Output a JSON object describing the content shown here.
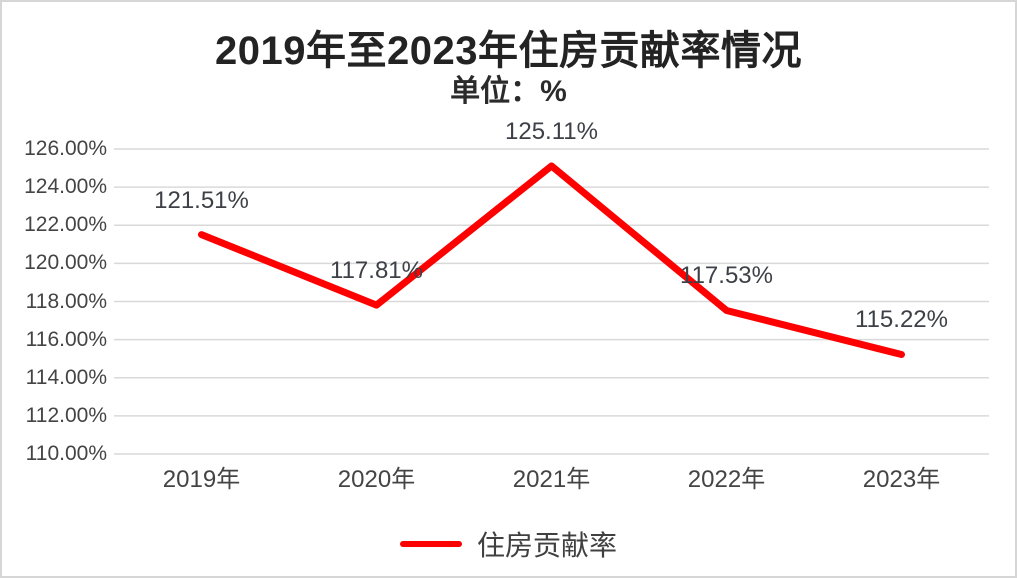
{
  "frame": {
    "background": "#ffffff",
    "border_color": "#d6d6d6"
  },
  "chart_data": {
    "type": "line",
    "title": "2019年至2023年住房贡献率情况",
    "subtitle": "单位：%",
    "categories": [
      "2019年",
      "2020年",
      "2021年",
      "2022年",
      "2023年"
    ],
    "series": [
      {
        "name": "住房贡献率",
        "color": "#fe0000",
        "values": [
          121.51,
          117.81,
          125.11,
          117.53,
          115.22
        ],
        "labels": [
          "121.51%",
          "117.81%",
          "125.11%",
          "117.53%",
          "115.22%"
        ]
      }
    ],
    "ylim": [
      110,
      126
    ],
    "y_ticks": [
      {
        "value": 126,
        "label": "126.00%"
      },
      {
        "value": 124,
        "label": "124.00%"
      },
      {
        "value": 122,
        "label": "122.00%"
      },
      {
        "value": 120,
        "label": "120.00%"
      },
      {
        "value": 118,
        "label": "118.00%"
      },
      {
        "value": 116,
        "label": "116.00%"
      },
      {
        "value": 114,
        "label": "114.00%"
      },
      {
        "value": 112,
        "label": "112.00%"
      },
      {
        "value": 110,
        "label": "110.00%"
      }
    ],
    "grid": true,
    "gridline_color": "#d9d9d9",
    "legend_position": "bottom",
    "text_color": "#444444",
    "title_color": "#232323"
  }
}
